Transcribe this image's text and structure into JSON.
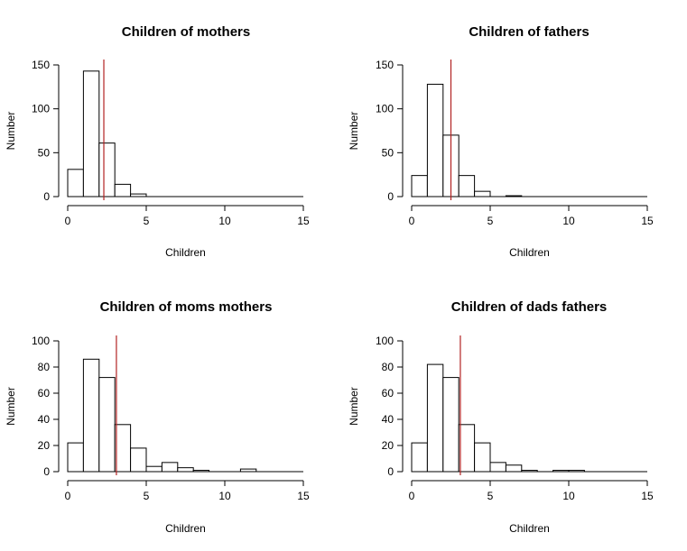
{
  "chart_data": [
    {
      "type": "histogram",
      "title": "Children of mothers",
      "xlabel": "Children",
      "ylabel": "Number",
      "bin_width": 1,
      "bin_edges": [
        0,
        1,
        2,
        3,
        4,
        5,
        6,
        7,
        8,
        9,
        10,
        11,
        12,
        13,
        14,
        15
      ],
      "counts": [
        31,
        143,
        61,
        14,
        3,
        0,
        0,
        0,
        0,
        0,
        0,
        0,
        0,
        0,
        0
      ],
      "mean_line": 2.3,
      "mean_line_color": "#b22222",
      "xlim": [
        0,
        15
      ],
      "ylim": [
        0,
        150
      ],
      "xticks": [
        "0",
        "5",
        "10",
        "15"
      ],
      "yticks": [
        "0",
        "50",
        "100",
        "150"
      ]
    },
    {
      "type": "histogram",
      "title": "Children of fathers",
      "xlabel": "Children",
      "ylabel": "Number",
      "bin_width": 1,
      "bin_edges": [
        0,
        1,
        2,
        3,
        4,
        5,
        6,
        7,
        8,
        9,
        10,
        11,
        12,
        13,
        14,
        15
      ],
      "counts": [
        24,
        128,
        70,
        24,
        6,
        0,
        1,
        0,
        0,
        0,
        0,
        0,
        0,
        0,
        0
      ],
      "mean_line": 2.5,
      "mean_line_color": "#b22222",
      "xlim": [
        0,
        15
      ],
      "ylim": [
        0,
        150
      ],
      "xticks": [
        "0",
        "5",
        "10",
        "15"
      ],
      "yticks": [
        "0",
        "50",
        "100",
        "150"
      ]
    },
    {
      "type": "histogram",
      "title": "Children of moms mothers",
      "xlabel": "Children",
      "ylabel": "Number",
      "bin_width": 1,
      "bin_edges": [
        0,
        1,
        2,
        3,
        4,
        5,
        6,
        7,
        8,
        9,
        10,
        11,
        12,
        13,
        14,
        15
      ],
      "counts": [
        22,
        86,
        72,
        36,
        18,
        4,
        7,
        3,
        1,
        0,
        0,
        2,
        0,
        0,
        0
      ],
      "mean_line": 3.1,
      "mean_line_color": "#b22222",
      "xlim": [
        0,
        15
      ],
      "ylim": [
        0,
        100
      ],
      "xticks": [
        "0",
        "5",
        "10",
        "15"
      ],
      "yticks": [
        "0",
        "20",
        "40",
        "60",
        "80",
        "100"
      ]
    },
    {
      "type": "histogram",
      "title": "Children of dads fathers",
      "xlabel": "Children",
      "ylabel": "Number",
      "bin_width": 1,
      "bin_edges": [
        0,
        1,
        2,
        3,
        4,
        5,
        6,
        7,
        8,
        9,
        10,
        11,
        12,
        13,
        14,
        15
      ],
      "counts": [
        22,
        82,
        72,
        36,
        22,
        7,
        5,
        1,
        0,
        1,
        1,
        0,
        0,
        0,
        0
      ],
      "mean_line": 3.1,
      "mean_line_color": "#b22222",
      "xlim": [
        0,
        15
      ],
      "ylim": [
        0,
        100
      ],
      "xticks": [
        "0",
        "5",
        "10",
        "15"
      ],
      "yticks": [
        "0",
        "20",
        "40",
        "60",
        "80",
        "100"
      ]
    }
  ]
}
